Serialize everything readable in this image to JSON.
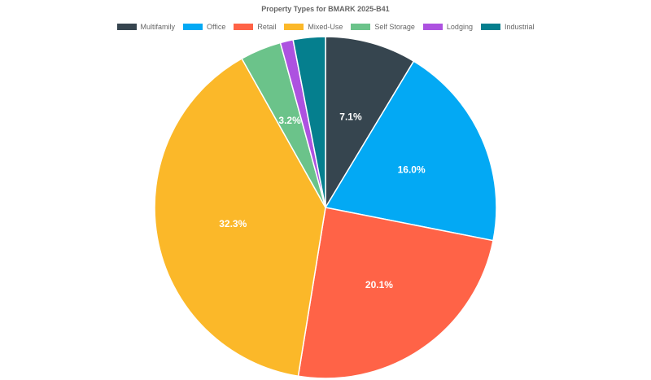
{
  "chart_data": {
    "type": "pie",
    "title": "Property Types for BMARK 2025-B41",
    "legend_position": "top",
    "categories": [
      "Multifamily",
      "Office",
      "Retail",
      "Mixed-Use",
      "Self Storage",
      "Lodging",
      "Industrial"
    ],
    "values": [
      7.1,
      16.0,
      20.1,
      32.3,
      3.2,
      1.0,
      2.5
    ],
    "colors": [
      "#36454f",
      "#03a9f4",
      "#ff6347",
      "#fbb829",
      "#6bc38a",
      "#ad52e0",
      "#057f8e"
    ],
    "labels_shown": [
      "7.1%",
      "16.0%",
      "20.1%",
      "32.3%",
      "3.2%",
      "",
      ""
    ]
  }
}
